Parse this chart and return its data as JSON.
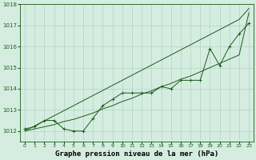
{
  "title": "Graphe pression niveau de la mer (hPa)",
  "bg_color": "#d4ede0",
  "grid_color": "#a8ccb8",
  "line_color": "#1a5c1a",
  "x_values": [
    0,
    1,
    2,
    3,
    4,
    5,
    6,
    7,
    8,
    9,
    10,
    11,
    12,
    13,
    14,
    15,
    16,
    17,
    18,
    19,
    20,
    21,
    22,
    23
  ],
  "actual_values": [
    1012.1,
    1012.2,
    1012.5,
    1012.5,
    1012.1,
    1012.0,
    1012.0,
    1012.6,
    1013.2,
    1013.5,
    1013.8,
    1013.8,
    1013.8,
    1013.8,
    1014.1,
    1014.0,
    1014.4,
    1014.4,
    1014.4,
    1015.9,
    1015.1,
    1016.0,
    1016.6,
    1017.1
  ],
  "line_upper": [
    1012.0,
    1012.24,
    1012.48,
    1012.72,
    1012.96,
    1013.2,
    1013.44,
    1013.68,
    1013.92,
    1014.16,
    1014.4,
    1014.64,
    1014.88,
    1015.12,
    1015.36,
    1015.6,
    1015.84,
    1016.08,
    1016.32,
    1016.56,
    1016.8,
    1017.04,
    1017.28,
    1017.8
  ],
  "line_lower": [
    1012.0,
    1012.1,
    1012.2,
    1012.3,
    1012.45,
    1012.55,
    1012.7,
    1012.85,
    1013.05,
    1013.2,
    1013.4,
    1013.55,
    1013.75,
    1013.9,
    1014.1,
    1014.25,
    1014.45,
    1014.6,
    1014.8,
    1015.0,
    1015.2,
    1015.4,
    1015.6,
    1017.6
  ],
  "ylim": [
    1011.5,
    1018.0
  ],
  "yticks": [
    1012,
    1013,
    1014,
    1015,
    1016,
    1017,
    1018
  ],
  "xlim": [
    -0.5,
    23.5
  ],
  "xticks": [
    0,
    1,
    2,
    3,
    4,
    5,
    6,
    7,
    8,
    9,
    10,
    11,
    12,
    13,
    14,
    15,
    16,
    17,
    18,
    19,
    20,
    21,
    22,
    23
  ]
}
